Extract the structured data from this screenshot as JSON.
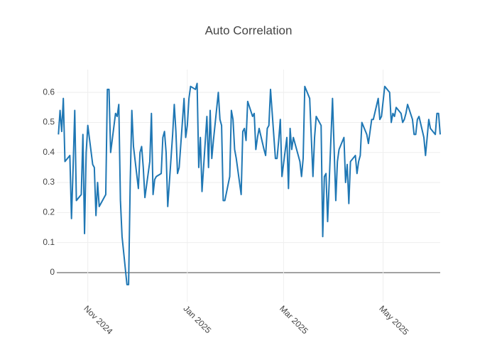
{
  "chart_data": {
    "type": "line",
    "title": "Auto Correlation",
    "color": "#1f77b4",
    "x": [
      "2024-10-14",
      "2024-10-15",
      "2024-10-16",
      "2024-10-17",
      "2024-10-18",
      "2024-10-21",
      "2024-10-22",
      "2024-10-23",
      "2024-10-24",
      "2024-10-25",
      "2024-10-28",
      "2024-10-29",
      "2024-10-30",
      "2024-10-31",
      "2024-11-01",
      "2024-11-04",
      "2024-11-05",
      "2024-11-06",
      "2024-11-07",
      "2024-11-08",
      "2024-11-11",
      "2024-11-12",
      "2024-11-13",
      "2024-11-14",
      "2024-11-15",
      "2024-11-18",
      "2024-11-19",
      "2024-11-20",
      "2024-11-21",
      "2024-11-22",
      "2024-11-25",
      "2024-11-26",
      "2024-11-27",
      "2024-11-28",
      "2024-11-29",
      "2024-12-02",
      "2024-12-03",
      "2024-12-04",
      "2024-12-05",
      "2024-12-06",
      "2024-12-09",
      "2024-12-10",
      "2024-12-11",
      "2024-12-12",
      "2024-12-13",
      "2024-12-16",
      "2024-12-17",
      "2024-12-18",
      "2024-12-19",
      "2024-12-20",
      "2024-12-23",
      "2024-12-24",
      "2024-12-25",
      "2024-12-26",
      "2024-12-27",
      "2024-12-30",
      "2024-12-31",
      "2025-01-01",
      "2025-01-02",
      "2025-01-03",
      "2025-01-06",
      "2025-01-07",
      "2025-01-08",
      "2025-01-09",
      "2025-01-10",
      "2025-01-13",
      "2025-01-14",
      "2025-01-15",
      "2025-01-16",
      "2025-01-17",
      "2025-01-20",
      "2025-01-21",
      "2025-01-22",
      "2025-01-23",
      "2025-01-24",
      "2025-01-27",
      "2025-01-28",
      "2025-01-29",
      "2025-01-30",
      "2025-01-31",
      "2025-02-03",
      "2025-02-04",
      "2025-02-05",
      "2025-02-06",
      "2025-02-07",
      "2025-02-10",
      "2025-02-11",
      "2025-02-12",
      "2025-02-13",
      "2025-02-14",
      "2025-02-17",
      "2025-02-18",
      "2025-02-19",
      "2025-02-20",
      "2025-02-21",
      "2025-02-24",
      "2025-02-25",
      "2025-02-26",
      "2025-02-27",
      "2025-02-28",
      "2025-03-03",
      "2025-03-04",
      "2025-03-05",
      "2025-03-06",
      "2025-03-07",
      "2025-03-10",
      "2025-03-11",
      "2025-03-12",
      "2025-03-13",
      "2025-03-14",
      "2025-03-17",
      "2025-03-18",
      "2025-03-19",
      "2025-03-20",
      "2025-03-21",
      "2025-03-24",
      "2025-03-25",
      "2025-03-26",
      "2025-03-27",
      "2025-03-28",
      "2025-03-31",
      "2025-04-01",
      "2025-04-02",
      "2025-04-03",
      "2025-04-04",
      "2025-04-07",
      "2025-04-08",
      "2025-04-09",
      "2025-04-10",
      "2025-04-11",
      "2025-04-14",
      "2025-04-15",
      "2025-04-16",
      "2025-04-17",
      "2025-04-18",
      "2025-04-21",
      "2025-04-22",
      "2025-04-23",
      "2025-04-24",
      "2025-04-25",
      "2025-04-28",
      "2025-04-29",
      "2025-04-30",
      "2025-05-01",
      "2025-05-02",
      "2025-05-05",
      "2025-05-06",
      "2025-05-07",
      "2025-05-08",
      "2025-05-09",
      "2025-05-12",
      "2025-05-13",
      "2025-05-14",
      "2025-05-15",
      "2025-05-16",
      "2025-05-19",
      "2025-05-20",
      "2025-05-21",
      "2025-05-22",
      "2025-05-23",
      "2025-05-26",
      "2025-05-27",
      "2025-05-28",
      "2025-05-29",
      "2025-05-30",
      "2025-06-02",
      "2025-06-03",
      "2025-06-04",
      "2025-06-05"
    ],
    "values": [
      0.46,
      0.54,
      0.47,
      0.58,
      0.37,
      0.39,
      0.18,
      0.35,
      0.54,
      0.24,
      0.26,
      0.46,
      0.13,
      0.4,
      0.49,
      0.36,
      0.35,
      0.19,
      0.3,
      0.22,
      0.25,
      0.26,
      0.61,
      0.61,
      0.4,
      0.53,
      0.52,
      0.56,
      0.24,
      0.12,
      -0.04,
      -0.04,
      0.3,
      0.54,
      0.42,
      0.28,
      0.4,
      0.42,
      0.35,
      0.25,
      0.37,
      0.53,
      0.26,
      0.31,
      0.32,
      0.33,
      0.45,
      0.47,
      0.4,
      0.22,
      0.46,
      0.56,
      0.47,
      0.33,
      0.35,
      0.58,
      0.45,
      0.49,
      0.58,
      0.62,
      0.61,
      0.63,
      0.35,
      0.45,
      0.27,
      0.52,
      0.35,
      0.54,
      0.38,
      0.44,
      0.6,
      0.51,
      0.49,
      0.24,
      0.24,
      0.32,
      0.54,
      0.51,
      0.41,
      0.38,
      0.26,
      0.47,
      0.48,
      0.44,
      0.57,
      0.52,
      0.53,
      0.41,
      0.45,
      0.48,
      0.41,
      0.39,
      0.48,
      0.49,
      0.61,
      0.38,
      0.38,
      0.44,
      0.51,
      0.32,
      0.45,
      0.28,
      0.48,
      0.41,
      0.45,
      0.39,
      0.37,
      0.32,
      0.38,
      0.62,
      0.58,
      0.45,
      0.32,
      0.45,
      0.52,
      0.49,
      0.12,
      0.32,
      0.33,
      0.17,
      0.58,
      0.41,
      0.24,
      0.37,
      0.41,
      0.45,
      0.3,
      0.36,
      0.23,
      0.37,
      0.39,
      0.33,
      0.37,
      0.39,
      0.5,
      0.46,
      0.43,
      0.47,
      0.51,
      0.51,
      0.58,
      0.51,
      0.52,
      0.57,
      0.62,
      0.6,
      0.5,
      0.53,
      0.52,
      0.55,
      0.53,
      0.5,
      0.51,
      0.53,
      0.56,
      0.51,
      0.46,
      0.46,
      0.51,
      0.52,
      0.45,
      0.39,
      0.45,
      0.51,
      0.48,
      0.46,
      0.53,
      0.53,
      0.46
    ],
    "xlim": [
      "2024-10-13",
      "2025-06-05"
    ],
    "xticks": [
      {
        "value": "2024-11-01",
        "label": "Nov 2024"
      },
      {
        "value": "2025-01-01",
        "label": "Jan 2025"
      },
      {
        "value": "2025-03-01",
        "label": "Mar 2025"
      },
      {
        "value": "2025-05-01",
        "label": "May 2025"
      }
    ],
    "ylim": [
      -0.097,
      0.676
    ],
    "yticks": [
      0,
      0.1,
      0.2,
      0.3,
      0.4,
      0.5,
      0.6
    ],
    "grid": true
  }
}
